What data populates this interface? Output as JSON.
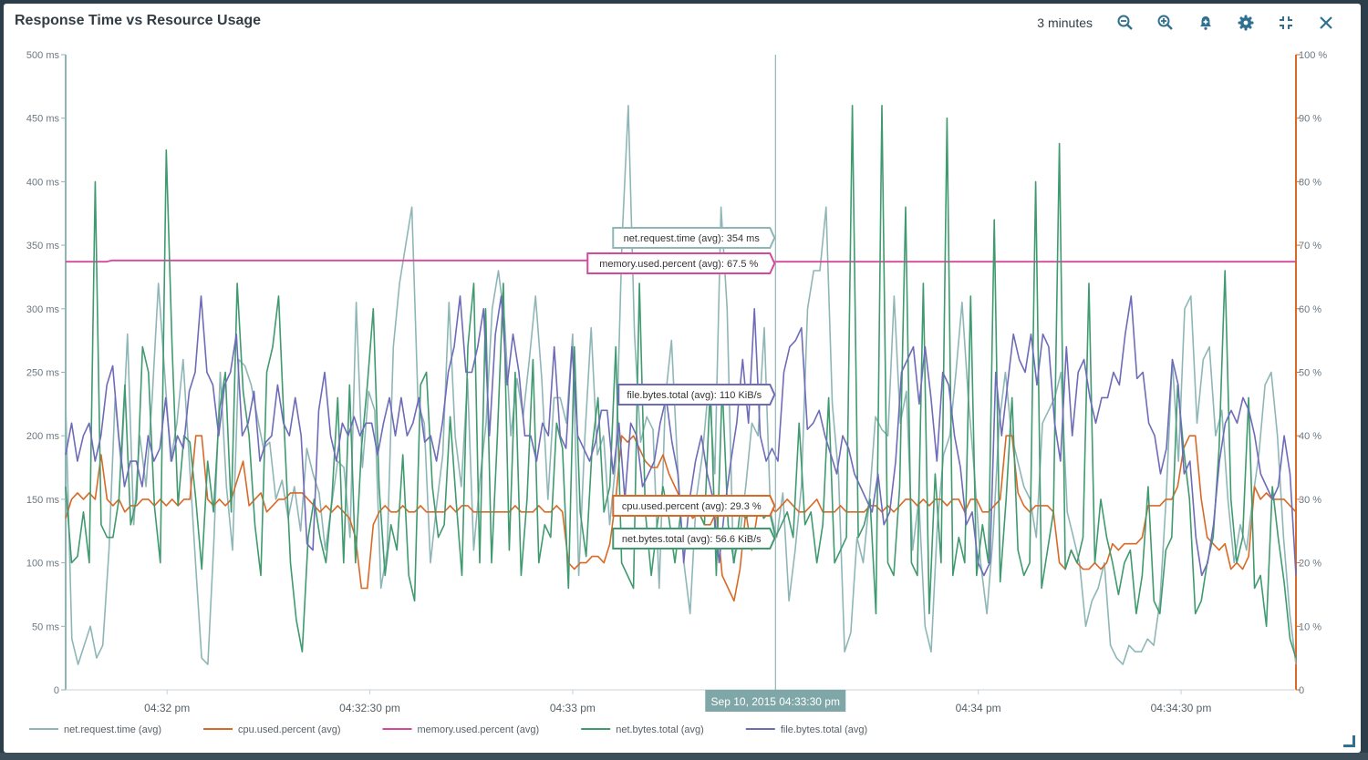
{
  "panel": {
    "title": "Response Time vs Resource Usage",
    "range_label": "3 minutes",
    "toolbar_icons": [
      "zoom-out-icon",
      "zoom-in-icon",
      "alert-add-icon",
      "gear-icon",
      "collapse-icon",
      "close-icon"
    ]
  },
  "colors": {
    "net_request_time": "#8fb6b7",
    "cpu_used_percent": "#d86a27",
    "memory_used_percent": "#d6489b",
    "net_bytes_total": "#3f9a6f",
    "file_bytes_total": "#6e6bb8",
    "right_axis": "#d86a27",
    "cursor": "#7fa7a8"
  },
  "chart_data": {
    "type": "line",
    "title": "Response Time vs Resource Usage",
    "y_left": {
      "ylim": [
        0,
        500
      ],
      "ticks": [
        "0",
        "50 ms",
        "100 ms",
        "150 ms",
        "200 ms",
        "250 ms",
        "300 ms",
        "350 ms",
        "400 ms",
        "450 ms",
        "500 ms"
      ]
    },
    "y_right": {
      "ylim": [
        0,
        100
      ],
      "ticks": [
        "0",
        "10 %",
        "20 %",
        "30 %",
        "40 %",
        "50 %",
        "60 %",
        "70 %",
        "80 %",
        "90 %",
        "100 %"
      ]
    },
    "x_ticks": [
      "04:32 pm",
      "04:32:30 pm",
      "04:33 pm",
      "04:33:30 pm",
      "04:34 pm",
      "04:34:30 pm"
    ],
    "x_range_seconds": [
      -15,
      167
    ],
    "cursor": {
      "t": 90,
      "label": "Sep 10, 2015 04:33:30 pm"
    },
    "tooltips": [
      {
        "series": 0,
        "text": "net.request.time (avg): 354 ms"
      },
      {
        "series": 2,
        "text": "memory.used.percent (avg): 67.5 %"
      },
      {
        "series": 4,
        "text": "file.bytes.total (avg): 110 KiB/s"
      },
      {
        "series": 1,
        "text": "cpu.used.percent (avg): 29.3 %"
      },
      {
        "series": 3,
        "text": "net.bytes.total (avg): 56.6 KiB/s"
      }
    ],
    "series": [
      {
        "name": "net.request.time (avg)",
        "axis": "left",
        "color": "#8fb6b7",
        "values": [
          225,
          40,
          20,
          35,
          50,
          25,
          35,
          110,
          230,
          175,
          280,
          130,
          200,
          160,
          230,
          320,
          250,
          180,
          210,
          260,
          180,
          100,
          25,
          20,
          120,
          250,
          160,
          110,
          260,
          255,
          240,
          215,
          190,
          195,
          150,
          165,
          135,
          160,
          125,
          190,
          170,
          155,
          110,
          145,
          180,
          175,
          120,
          305,
          175,
          235,
          220,
          80,
          110,
          270,
          320,
          350,
          380,
          225,
          210,
          100,
          145,
          185,
          305,
          200,
          160,
          245,
          110,
          165,
          210,
          300,
          330,
          290,
          200,
          245,
          215,
          260,
          310,
          245,
          150,
          230,
          230,
          210,
          280,
          90,
          200,
          285,
          185,
          200,
          130,
          180,
          355,
          460,
          280,
          195,
          215,
          205,
          80,
          230,
          275,
          175,
          100,
          60,
          150,
          185,
          240,
          170,
          380,
          300,
          100,
          120,
          160,
          210,
          200,
          285,
          140,
          120,
          155,
          70,
          110,
          160,
          300,
          330,
          330,
          380,
          225,
          170,
          30,
          45,
          120,
          100,
          150,
          215,
          205,
          200,
          310,
          210,
          235,
          110,
          150,
          50,
          30,
          130,
          185,
          200,
          250,
          305,
          230,
          170,
          100,
          60,
          120,
          210,
          250,
          200,
          180,
          160,
          150,
          120,
          210,
          220,
          230,
          250,
          140,
          120,
          100,
          50,
          70,
          80,
          100,
          35,
          25,
          20,
          35,
          30,
          30,
          40,
          35,
          70,
          150,
          260,
          180,
          300,
          310,
          210,
          260,
          270,
          200,
          220,
          150,
          100,
          130,
          110,
          150,
          185,
          240,
          250,
          200,
          120,
          60,
          20
        ]
      },
      {
        "name": "cpu.used.percent (avg)",
        "axis": "left",
        "color": "#d86a27",
        "values": [
          135,
          150,
          155,
          150,
          155,
          150,
          185,
          150,
          145,
          150,
          140,
          145,
          145,
          150,
          150,
          145,
          150,
          145,
          150,
          145,
          150,
          150,
          200,
          200,
          150,
          145,
          150,
          145,
          150,
          165,
          180,
          145,
          150,
          155,
          140,
          145,
          150,
          150,
          155,
          155,
          155,
          150,
          145,
          140,
          145,
          140,
          145,
          140,
          135,
          120,
          80,
          80,
          130,
          140,
          145,
          140,
          140,
          145,
          140,
          140,
          145,
          140,
          140,
          140,
          140,
          145,
          140,
          145,
          145,
          140,
          140,
          140,
          140,
          140,
          140,
          140,
          145,
          140,
          140,
          140,
          145,
          140,
          140,
          145,
          140,
          100,
          95,
          100,
          100,
          105,
          105,
          100,
          115,
          150,
          200,
          195,
          200,
          190,
          180,
          175,
          175,
          185,
          170,
          160,
          150,
          145,
          135,
          140,
          130,
          130,
          140,
          90,
          80,
          70,
          95,
          140,
          110,
          140,
          140,
          145,
          140,
          145,
          150,
          145,
          140,
          140,
          145,
          150,
          140,
          140,
          140,
          145,
          140,
          140,
          140,
          140,
          145,
          145,
          140,
          145,
          140,
          145,
          150,
          150,
          145,
          150,
          145,
          150,
          150,
          145,
          150,
          150,
          140,
          150,
          150,
          140,
          140,
          145,
          150,
          200,
          200,
          155,
          145,
          140,
          145,
          145,
          145,
          140,
          100,
          95,
          110,
          100,
          95,
          95,
          100,
          95,
          100,
          115,
          110,
          115,
          115,
          115,
          120,
          145,
          145,
          145,
          150,
          150,
          160,
          190,
          200,
          200,
          150,
          120,
          115,
          110,
          115,
          95,
          100,
          95,
          105,
          160,
          150,
          155,
          150,
          150,
          150,
          145,
          140
        ]
      },
      {
        "name": "memory.used.percent (avg)",
        "axis": "left",
        "color": "#d6489b",
        "values": [
          337,
          337,
          337,
          337,
          337,
          337,
          337,
          337,
          338,
          338,
          338,
          338,
          338,
          338,
          338,
          338,
          338,
          338,
          338,
          338,
          338,
          338,
          338,
          338,
          338,
          338,
          338,
          338,
          338,
          338,
          338,
          338,
          338,
          338,
          338,
          338,
          338,
          338,
          338,
          338,
          338,
          338,
          338,
          338,
          338,
          338,
          338,
          338,
          338,
          338,
          338,
          338,
          338,
          338,
          338,
          338,
          338,
          338,
          338,
          338,
          338,
          338,
          338,
          338,
          338,
          338,
          338,
          338,
          338,
          338,
          338,
          338,
          338,
          338,
          338,
          338,
          338,
          338,
          338,
          338,
          338,
          338,
          338,
          338,
          338,
          338,
          338,
          338,
          338,
          338,
          338,
          338,
          338,
          338,
          338,
          338,
          338,
          338,
          338,
          338,
          338,
          338,
          338,
          338,
          338,
          338,
          338,
          338,
          338,
          338,
          338,
          338,
          338,
          338,
          338,
          338,
          337,
          337,
          337,
          337,
          337,
          337,
          337,
          337,
          337,
          337,
          337,
          337,
          337,
          337,
          337,
          337,
          337,
          337,
          337,
          337,
          337,
          337,
          337,
          337,
          337,
          337,
          337,
          337,
          337,
          337,
          337,
          337,
          337,
          337,
          337,
          337,
          337,
          337,
          337,
          337,
          337,
          337,
          337,
          337,
          337,
          337,
          337,
          337,
          337,
          337,
          337,
          337,
          337,
          337,
          337,
          337,
          337,
          337,
          337,
          337,
          337,
          337,
          337,
          337,
          337,
          337,
          337,
          337,
          337,
          337,
          337,
          337,
          337,
          337,
          337,
          337,
          337,
          337,
          337,
          337,
          337,
          337,
          337,
          337,
          337,
          337,
          337,
          337,
          337,
          337,
          337,
          337,
          337,
          337,
          337,
          337,
          337
        ]
      },
      {
        "name": "net.bytes.total (avg)",
        "axis": "left",
        "color": "#3f9a6f",
        "values": [
          160,
          100,
          105,
          140,
          100,
          400,
          130,
          120,
          120,
          150,
          240,
          130,
          150,
          270,
          250,
          145,
          100,
          425,
          270,
          145,
          200,
          195,
          150,
          95,
          180,
          140,
          220,
          250,
          140,
          320,
          235,
          200,
          130,
          90,
          250,
          270,
          310,
          200,
          100,
          55,
          30,
          120,
          150,
          120,
          100,
          150,
          230,
          100,
          240,
          100,
          190,
          240,
          300,
          160,
          90,
          130,
          110,
          185,
          90,
          70,
          240,
          250,
          160,
          120,
          130,
          215,
          150,
          90,
          270,
          320,
          100,
          300,
          100,
          200,
          320,
          110,
          250,
          90,
          150,
          260,
          100,
          130,
          120,
          210,
          190,
          80,
          270,
          140,
          105,
          190,
          230,
          140,
          160,
          270,
          100,
          90,
          80,
          320,
          140,
          90,
          130,
          160,
          135,
          100,
          140,
          150,
          150,
          140,
          130,
          240,
          90,
          240,
          130,
          100,
          140,
          135,
          140,
          150,
          135,
          140,
          120,
          130,
          140,
          120,
          210,
          130,
          140,
          100,
          130,
          230,
          100,
          110,
          120,
          460,
          120,
          130,
          150,
          60,
          460,
          100,
          90,
          160,
          380,
          100,
          90,
          320,
          60,
          170,
          100,
          450,
          90,
          120,
          100,
          310,
          90,
          130,
          100,
          370,
          85,
          150,
          230,
          110,
          90,
          100,
          400,
          80,
          110,
          140,
          430,
          95,
          110,
          100,
          120,
          320,
          100,
          150,
          120,
          100,
          75,
          100,
          110,
          60,
          90,
          160,
          70,
          60,
          110,
          120,
          240,
          190,
          150,
          60,
          70,
          100,
          120,
          190,
          330,
          150,
          100,
          120,
          230,
          80,
          90,
          50,
          160,
          120,
          85,
          40,
          25
        ]
      },
      {
        "name": "file.bytes.total (avg)",
        "axis": "left",
        "color": "#6e6bb8",
        "values": [
          185,
          210,
          180,
          200,
          210,
          180,
          200,
          240,
          255,
          200,
          160,
          180,
          180,
          160,
          200,
          180,
          190,
          230,
          180,
          200,
          190,
          235,
          250,
          310,
          250,
          240,
          200,
          240,
          250,
          280,
          200,
          210,
          235,
          180,
          195,
          200,
          240,
          210,
          200,
          230,
          200,
          115,
          110,
          220,
          250,
          200,
          180,
          210,
          200,
          215,
          200,
          210,
          210,
          185,
          210,
          230,
          200,
          230,
          200,
          210,
          230,
          195,
          200,
          180,
          210,
          250,
          270,
          310,
          250,
          250,
          270,
          300,
          200,
          280,
          310,
          240,
          280,
          250,
          200,
          200,
          180,
          210,
          200,
          270,
          200,
          190,
          270,
          200,
          190,
          180,
          195,
          220,
          220,
          170,
          210,
          150,
          210,
          200,
          160,
          170,
          180,
          210,
          230,
          195,
          170,
          100,
          150,
          180,
          200,
          170,
          150,
          100,
          145,
          180,
          210,
          260,
          210,
          300,
          200,
          180,
          190,
          180,
          250,
          270,
          275,
          285,
          205,
          210,
          220,
          200,
          185,
          170,
          200,
          190,
          170,
          160,
          150,
          140,
          170,
          130,
          140,
          180,
          250,
          260,
          270,
          225,
          270,
          230,
          180,
          250,
          240,
          200,
          175,
          130,
          140,
          100,
          90,
          100,
          250,
          200,
          240,
          280,
          260,
          250,
          280,
          240,
          280,
          270,
          210,
          180,
          270,
          200,
          250,
          260,
          230,
          210,
          230,
          230,
          250,
          240,
          280,
          310,
          245,
          250,
          210,
          200,
          170,
          190,
          260,
          240,
          170,
          180,
          120,
          90,
          100,
          130,
          180,
          210,
          220,
          210,
          230,
          220,
          200,
          170,
          160,
          150,
          160,
          200,
          170,
          90
        ]
      }
    ]
  }
}
